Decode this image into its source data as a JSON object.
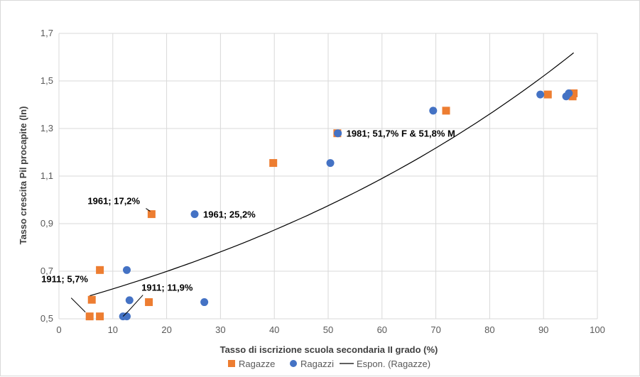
{
  "chart_data": {
    "type": "scatter",
    "title": "",
    "xlabel": "Tasso di iscrizione scuola secondaria II grado (%)",
    "ylabel": "Tasso crescita Pil procapite (ln)",
    "xlim": [
      0,
      100
    ],
    "ylim": [
      0.5,
      1.7
    ],
    "x_ticks": [
      "0",
      "10",
      "20",
      "30",
      "40",
      "50",
      "60",
      "70",
      "80",
      "90",
      "100"
    ],
    "y_ticks": [
      "0,5",
      "0,7",
      "0,9",
      "1,1",
      "1,3",
      "1,5",
      "1,7"
    ],
    "grid": true,
    "legend_position": "bottom",
    "series": [
      {
        "name": "Ragazze",
        "marker": "square",
        "color": "#ED7D31",
        "points": [
          {
            "x": 5.7,
            "y": 0.51
          },
          {
            "x": 6.1,
            "y": 0.58
          },
          {
            "x": 7.6,
            "y": 0.51
          },
          {
            "x": 7.6,
            "y": 0.705
          },
          {
            "x": 16.7,
            "y": 0.57
          },
          {
            "x": 17.2,
            "y": 0.94
          },
          {
            "x": 39.8,
            "y": 1.155
          },
          {
            "x": 51.7,
            "y": 1.28
          },
          {
            "x": 71.9,
            "y": 1.375
          },
          {
            "x": 90.8,
            "y": 1.443
          },
          {
            "x": 95.4,
            "y": 1.435
          },
          {
            "x": 95.6,
            "y": 1.448
          }
        ]
      },
      {
        "name": "Ragazzi",
        "marker": "circle",
        "color": "#4472C4",
        "points": [
          {
            "x": 11.9,
            "y": 0.51
          },
          {
            "x": 12.6,
            "y": 0.51
          },
          {
            "x": 12.6,
            "y": 0.705
          },
          {
            "x": 13.1,
            "y": 0.578
          },
          {
            "x": 27.0,
            "y": 0.57
          },
          {
            "x": 25.2,
            "y": 0.94
          },
          {
            "x": 50.4,
            "y": 1.155
          },
          {
            "x": 51.8,
            "y": 1.28
          },
          {
            "x": 69.5,
            "y": 1.375
          },
          {
            "x": 89.4,
            "y": 1.443
          },
          {
            "x": 94.2,
            "y": 1.435
          },
          {
            "x": 94.7,
            "y": 1.448
          }
        ]
      },
      {
        "name": "Espon. (Ragazze)",
        "type": "trendline",
        "color": "#000000",
        "fit": "exponential",
        "a": 0.56,
        "b": 0.0111,
        "x_range": [
          5.7,
          95.6
        ]
      }
    ],
    "annotations": [
      {
        "text": "1911; 5,7%",
        "x": 5.7,
        "y": 0.51
      },
      {
        "text": "1911; 11,9%",
        "x": 11.9,
        "y": 0.51
      },
      {
        "text": "1961; 17,2%",
        "x": 17.2,
        "y": 0.94
      },
      {
        "text": "1961; 25,2%",
        "x": 25.2,
        "y": 0.94
      },
      {
        "text": "1981; 51,7% F & 51,8% M",
        "x": 51.8,
        "y": 1.28
      }
    ]
  }
}
